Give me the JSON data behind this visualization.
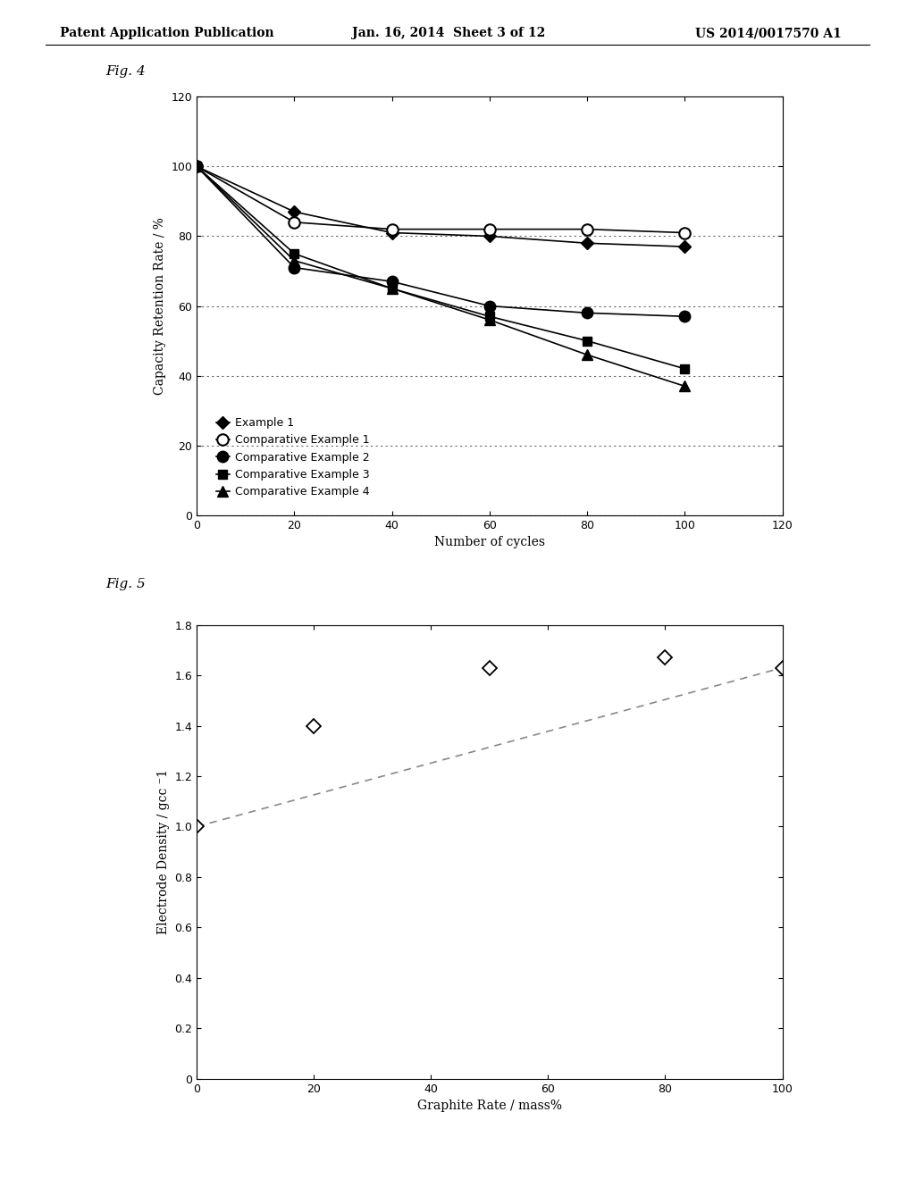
{
  "header_left": "Patent Application Publication",
  "header_center": "Jan. 16, 2014  Sheet 3 of 12",
  "header_right": "US 2014/0017570 A1",
  "fig4_label": "Fig. 4",
  "fig5_label": "Fig. 5",
  "fig4": {
    "xlabel": "Number of cycles",
    "ylabel": "Capacity Retention Rate / %",
    "xlim": [
      0,
      120
    ],
    "ylim": [
      0,
      120
    ],
    "xticks": [
      0,
      20,
      40,
      60,
      80,
      100,
      120
    ],
    "yticks": [
      0,
      20,
      40,
      60,
      80,
      100,
      120
    ],
    "series": [
      {
        "label": "Example 1",
        "x": [
          0,
          20,
          40,
          60,
          80,
          100
        ],
        "y": [
          100,
          87,
          81,
          80,
          78,
          77
        ],
        "marker": "D",
        "fillstyle": "full",
        "markersize": 7
      },
      {
        "label": "Comparative Example 1",
        "x": [
          0,
          20,
          40,
          60,
          80,
          100
        ],
        "y": [
          100,
          84,
          82,
          82,
          82,
          81
        ],
        "marker": "o",
        "fillstyle": "none",
        "markersize": 9
      },
      {
        "label": "Comparative Example 2",
        "x": [
          0,
          20,
          40,
          60,
          80,
          100
        ],
        "y": [
          100,
          71,
          67,
          60,
          58,
          57
        ],
        "marker": "o",
        "fillstyle": "full",
        "markersize": 9
      },
      {
        "label": "Comparative Example 3",
        "x": [
          0,
          20,
          40,
          60,
          80,
          100
        ],
        "y": [
          100,
          75,
          65,
          57,
          50,
          42
        ],
        "marker": "s",
        "fillstyle": "full",
        "markersize": 7
      },
      {
        "label": "Comparative Example 4",
        "x": [
          0,
          20,
          40,
          60,
          80,
          100
        ],
        "y": [
          100,
          73,
          65,
          56,
          46,
          37
        ],
        "marker": "^",
        "fillstyle": "full",
        "markersize": 8
      }
    ],
    "grid_yticks": [
      0,
      20,
      40,
      60,
      80,
      100
    ],
    "grid_style": "dotted",
    "grid_color": "#666666"
  },
  "fig5": {
    "xlabel": "Graphite Rate / mass%",
    "ylabel": "Electrode Density / gcc ⁻1",
    "xlim": [
      0,
      100
    ],
    "ylim": [
      0,
      1.8
    ],
    "xticks": [
      0,
      20,
      40,
      60,
      80,
      100
    ],
    "yticks": [
      0,
      0.2,
      0.4,
      0.6,
      0.8,
      1.0,
      1.2,
      1.4,
      1.6,
      1.8
    ],
    "scatter_x": [
      0,
      20,
      50,
      80,
      100
    ],
    "scatter_y": [
      1.0,
      1.4,
      1.63,
      1.67,
      1.63
    ],
    "trendline_x": [
      0,
      100
    ],
    "trendline_y": [
      1.0,
      1.63
    ],
    "marker": "D",
    "markersize": 8,
    "trendline_color": "#888888"
  },
  "background_color": "#ffffff",
  "font_color": "#000000",
  "font_size": 10,
  "header_font_size": 10
}
